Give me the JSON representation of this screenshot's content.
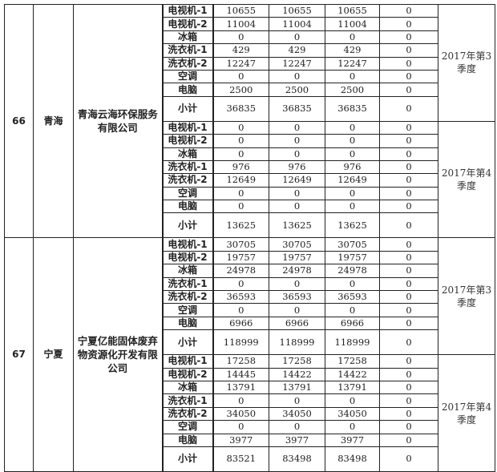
{
  "entries": [
    {
      "no": "66",
      "province": "青海",
      "company": "青海云海环保服务有限公司",
      "periods": [
        {
          "label": "2017年第3季度",
          "rows": [
            {
              "item": "电视机-1",
              "a": "10655",
              "b": "10655",
              "c": "10655",
              "d": "0"
            },
            {
              "item": "电视机-2",
              "a": "11004",
              "b": "11004",
              "c": "11004",
              "d": "0"
            },
            {
              "item": "冰箱",
              "a": "0",
              "b": "0",
              "c": "0",
              "d": "0"
            },
            {
              "item": "洗衣机-1",
              "a": "429",
              "b": "429",
              "c": "429",
              "d": "0"
            },
            {
              "item": "洗衣机-2",
              "a": "12247",
              "b": "12247",
              "c": "12247",
              "d": "0"
            },
            {
              "item": "空调",
              "a": "0",
              "b": "0",
              "c": "0",
              "d": "0"
            },
            {
              "item": "电脑",
              "a": "2500",
              "b": "2500",
              "c": "2500",
              "d": "0"
            },
            {
              "item": "小计",
              "a": "36835",
              "b": "36835",
              "c": "36835",
              "d": "0"
            }
          ]
        },
        {
          "label": "2017年第4季度",
          "rows": [
            {
              "item": "电视机-1",
              "a": "0",
              "b": "0",
              "c": "0",
              "d": "0"
            },
            {
              "item": "电视机-2",
              "a": "0",
              "b": "0",
              "c": "0",
              "d": "0"
            },
            {
              "item": "冰箱",
              "a": "0",
              "b": "0",
              "c": "0",
              "d": "0"
            },
            {
              "item": "洗衣机-1",
              "a": "976",
              "b": "976",
              "c": "976",
              "d": "0"
            },
            {
              "item": "洗衣机-2",
              "a": "12649",
              "b": "12649",
              "c": "12649",
              "d": "0"
            },
            {
              "item": "空调",
              "a": "0",
              "b": "0",
              "c": "0",
              "d": "0"
            },
            {
              "item": "电脑",
              "a": "0",
              "b": "0",
              "c": "0",
              "d": "0"
            },
            {
              "item": "小计",
              "a": "13625",
              "b": "13625",
              "c": "13625",
              "d": "0"
            }
          ]
        }
      ]
    },
    {
      "no": "67",
      "province": "宁夏",
      "company": "宁夏亿能固体废弃物资源化开发有限公司",
      "periods": [
        {
          "label": "2017年第3季度",
          "rows": [
            {
              "item": "电视机-1",
              "a": "30705",
              "b": "30705",
              "c": "30705",
              "d": "0"
            },
            {
              "item": "电视机-2",
              "a": "19757",
              "b": "19757",
              "c": "19757",
              "d": "0"
            },
            {
              "item": "冰箱",
              "a": "24978",
              "b": "24978",
              "c": "24978",
              "d": "0"
            },
            {
              "item": "洗衣机-1",
              "a": "0",
              "b": "0",
              "c": "0",
              "d": "0"
            },
            {
              "item": "洗衣机-2",
              "a": "36593",
              "b": "36593",
              "c": "36593",
              "d": "0"
            },
            {
              "item": "空调",
              "a": "0",
              "b": "0",
              "c": "0",
              "d": "0"
            },
            {
              "item": "电脑",
              "a": "6966",
              "b": "6966",
              "c": "6966",
              "d": "0"
            },
            {
              "item": "小计",
              "a": "118999",
              "b": "118999",
              "c": "118999",
              "d": "0"
            }
          ]
        },
        {
          "label": "2017年第4季度",
          "rows": [
            {
              "item": "电视机-1",
              "a": "17258",
              "b": "17258",
              "c": "17258",
              "d": "0"
            },
            {
              "item": "电视机-2",
              "a": "14445",
              "b": "14422",
              "c": "14422",
              "d": "0"
            },
            {
              "item": "冰箱",
              "a": "13791",
              "b": "13791",
              "c": "13791",
              "d": "0"
            },
            {
              "item": "洗衣机-1",
              "a": "0",
              "b": "0",
              "c": "0",
              "d": "0"
            },
            {
              "item": "洗衣机-2",
              "a": "34050",
              "b": "34050",
              "c": "34050",
              "d": "0"
            },
            {
              "item": "空调",
              "a": "0",
              "b": "0",
              "c": "0",
              "d": "0"
            },
            {
              "item": "电脑",
              "a": "3977",
              "b": "3977",
              "c": "3977",
              "d": "0"
            },
            {
              "item": "小计",
              "a": "83521",
              "b": "83498",
              "c": "83498",
              "d": "0"
            }
          ]
        }
      ]
    }
  ]
}
